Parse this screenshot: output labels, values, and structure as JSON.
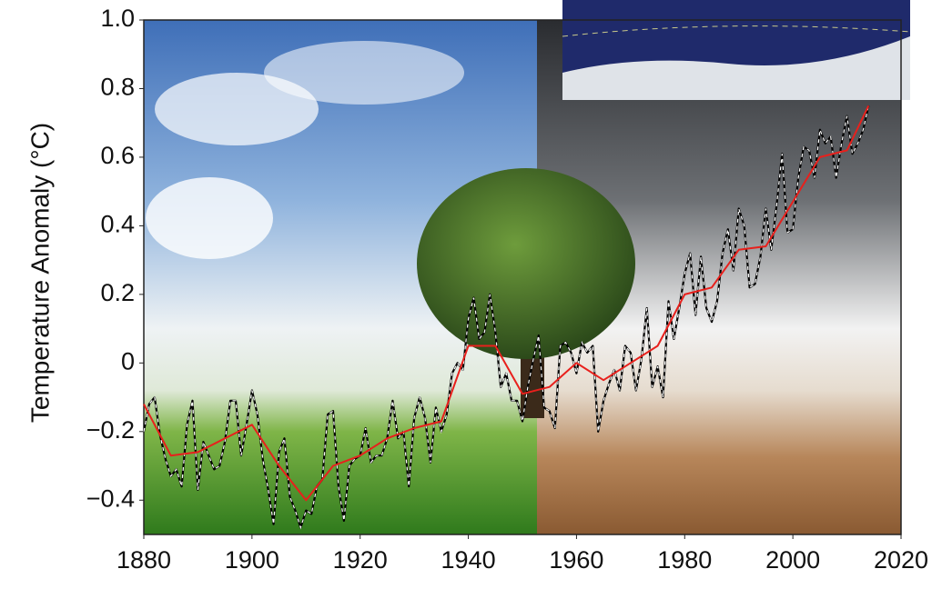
{
  "chart_data": {
    "type": "line",
    "y_label": "Temperature Anomaly (°C)",
    "xlim": [
      1880,
      2020
    ],
    "xticks": [
      1880,
      1900,
      1920,
      1940,
      1960,
      1980,
      2000,
      2020
    ],
    "ylim": [
      -0.5,
      1.0
    ],
    "yticks": [
      {
        "value": -0.4,
        "label": "−0.4"
      },
      {
        "value": -0.2,
        "label": "−0.2"
      },
      0,
      0.2,
      0.4,
      0.6,
      0.8,
      {
        "value": 1,
        "label": "1.0"
      }
    ],
    "series": [
      {
        "color": "#000000",
        "style": "dashed-white",
        "x": [
          1880,
          1881,
          1882,
          1883,
          1884,
          1885,
          1886,
          1887,
          1888,
          1889,
          1890,
          1891,
          1892,
          1893,
          1894,
          1895,
          1896,
          1897,
          1898,
          1899,
          1900,
          1901,
          1902,
          1903,
          1904,
          1905,
          1906,
          1907,
          1908,
          1909,
          1910,
          1911,
          1912,
          1913,
          1914,
          1915,
          1916,
          1917,
          1918,
          1919,
          1920,
          1921,
          1922,
          1923,
          1924,
          1925,
          1926,
          1927,
          1928,
          1929,
          1930,
          1931,
          1932,
          1933,
          1934,
          1935,
          1936,
          1937,
          1938,
          1939,
          1940,
          1941,
          1942,
          1943,
          1944,
          1945,
          1946,
          1947,
          1948,
          1949,
          1950,
          1951,
          1952,
          1953,
          1954,
          1955,
          1956,
          1957,
          1958,
          1959,
          1960,
          1961,
          1962,
          1963,
          1964,
          1965,
          1966,
          1967,
          1968,
          1969,
          1970,
          1971,
          1972,
          1973,
          1974,
          1975,
          1976,
          1977,
          1978,
          1979,
          1980,
          1981,
          1982,
          1983,
          1984,
          1985,
          1986,
          1987,
          1988,
          1989,
          1990,
          1991,
          1992,
          1993,
          1994,
          1995,
          1996,
          1997,
          1998,
          1999,
          2000,
          2001,
          2002,
          2003,
          2004,
          2005,
          2006,
          2007,
          2008,
          2009,
          2010,
          2011,
          2012,
          2013,
          2014
        ],
        "values": [
          -0.2,
          -0.12,
          -0.1,
          -0.21,
          -0.28,
          -0.33,
          -0.31,
          -0.36,
          -0.18,
          -0.11,
          -0.37,
          -0.23,
          -0.27,
          -0.31,
          -0.3,
          -0.23,
          -0.11,
          -0.11,
          -0.27,
          -0.18,
          -0.08,
          -0.15,
          -0.28,
          -0.37,
          -0.47,
          -0.26,
          -0.22,
          -0.39,
          -0.43,
          -0.48,
          -0.43,
          -0.44,
          -0.36,
          -0.34,
          -0.15,
          -0.14,
          -0.36,
          -0.46,
          -0.3,
          -0.28,
          -0.27,
          -0.19,
          -0.29,
          -0.27,
          -0.27,
          -0.22,
          -0.11,
          -0.22,
          -0.2,
          -0.36,
          -0.16,
          -0.1,
          -0.16,
          -0.29,
          -0.13,
          -0.2,
          -0.15,
          -0.03,
          0,
          -0.02,
          0.13,
          0.19,
          0.07,
          0.09,
          0.2,
          0.09,
          -0.07,
          -0.03,
          -0.11,
          -0.11,
          -0.17,
          -0.07,
          0.01,
          0.08,
          -0.13,
          -0.14,
          -0.19,
          0.05,
          0.06,
          0.03,
          -0.03,
          0.06,
          0.03,
          0.05,
          -0.2,
          -0.11,
          -0.06,
          -0.02,
          -0.08,
          0.05,
          0.03,
          -0.08,
          0.01,
          0.16,
          -0.07,
          -0.01,
          -0.1,
          0.18,
          0.07,
          0.16,
          0.26,
          0.32,
          0.14,
          0.31,
          0.16,
          0.12,
          0.18,
          0.32,
          0.39,
          0.27,
          0.45,
          0.4,
          0.22,
          0.23,
          0.31,
          0.45,
          0.33,
          0.46,
          0.61,
          0.38,
          0.39,
          0.54,
          0.63,
          0.62,
          0.54,
          0.68,
          0.64,
          0.66,
          0.54,
          0.64,
          0.72,
          0.61,
          0.64,
          0.68,
          0.75
        ]
      },
      {
        "color": "#e8201c",
        "style": "solid",
        "x": [
          1880,
          1885,
          1890,
          1895,
          1900,
          1905,
          1910,
          1915,
          1920,
          1925,
          1930,
          1935,
          1940,
          1945,
          1950,
          1955,
          1960,
          1965,
          1970,
          1975,
          1980,
          1985,
          1990,
          1995,
          2000,
          2005,
          2010,
          2014
        ],
        "values": [
          -0.12,
          -0.27,
          -0.26,
          -0.22,
          -0.18,
          -0.3,
          -0.4,
          -0.3,
          -0.27,
          -0.22,
          -0.19,
          -0.17,
          0.05,
          0.05,
          -0.09,
          -0.07,
          0,
          -0.05,
          0,
          0.05,
          0.2,
          0.22,
          0.33,
          0.34,
          0.47,
          0.6,
          0.62,
          0.75
        ]
      }
    ]
  }
}
